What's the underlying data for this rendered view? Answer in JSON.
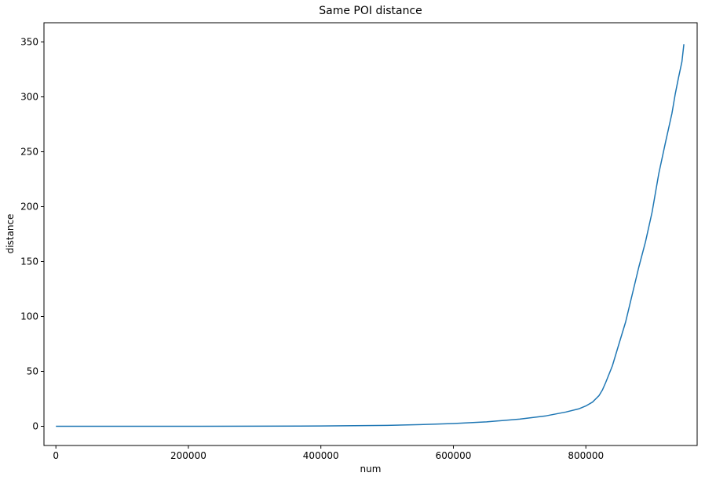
{
  "chart_data": {
    "type": "line",
    "title": "Same POI distance",
    "xlabel": "num",
    "ylabel": "distance",
    "xlim": [
      -18000,
      968000
    ],
    "ylim": [
      -17.5,
      367.5
    ],
    "xticks": [
      0,
      200000,
      400000,
      600000,
      800000
    ],
    "xtick_labels": [
      "0",
      "200000",
      "400000",
      "600000",
      "800000"
    ],
    "yticks": [
      0,
      50,
      100,
      150,
      200,
      250,
      300,
      350
    ],
    "ytick_labels": [
      "0",
      "50",
      "100",
      "150",
      "200",
      "250",
      "300",
      "350"
    ],
    "grid": false,
    "line_color": "#1f77b4",
    "series": [
      {
        "x": [
          0,
          100000,
          200000,
          300000,
          400000,
          450000,
          500000,
          550000,
          600000,
          650000,
          700000,
          740000,
          770000,
          790000,
          800000,
          810000,
          820000,
          825000,
          830000,
          840000,
          850000,
          860000,
          870000,
          880000,
          890000,
          900000,
          910000,
          920000,
          930000,
          935000,
          940000,
          945000,
          948000
        ],
        "y": [
          0,
          0,
          0,
          0.1,
          0.3,
          0.5,
          0.8,
          1.5,
          2.5,
          4,
          6.5,
          9.5,
          13,
          16,
          18.5,
          22,
          28,
          33,
          40,
          55,
          75,
          95,
          120,
          145,
          168,
          195,
          230,
          258,
          285,
          303,
          318,
          332,
          348
        ]
      }
    ]
  }
}
